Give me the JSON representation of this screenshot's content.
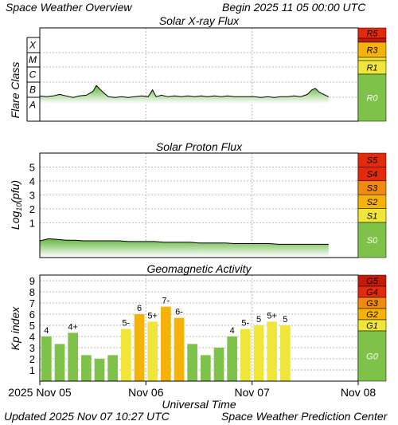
{
  "header": {
    "title": "Space Weather Overview",
    "begin": "Begin 2025 11 05 00:00 UTC"
  },
  "footer": {
    "updated": "Updated 2025 Nov 07 10:27 UTC",
    "center": "Space Weather Prediction Center"
  },
  "x_axis": {
    "label": "Universal Time",
    "ticks": [
      "2025 Nov 05",
      "Nov 06",
      "Nov 07",
      "Nov 08"
    ]
  },
  "colors": {
    "plot_bg": "#ffffff",
    "grid": "#bbbbbb",
    "green_bar": "#7fc24a",
    "yellow": "#f0e63a",
    "orange": "#f5b30a",
    "scale_green": "#7fc24a",
    "scale_yellow": "#f0e63a",
    "scale_amber": "#f5b30a",
    "scale_orange": "#f08a10",
    "scale_red": "#e32a0c",
    "scale_darkred": "#c41a0a"
  },
  "chart_data": [
    {
      "type": "line",
      "title": "Solar X-ray Flux",
      "ylabel": "Flare Class",
      "y_ticks": [
        "X",
        "M",
        "C",
        "B",
        "A"
      ],
      "scale": [
        "R5",
        "R3",
        "R1",
        "R0"
      ],
      "x_unit": "hours since 2025-11-05 00:00 UTC",
      "xlim": [
        0,
        72
      ],
      "series": [
        {
          "points": [
            [
              0,
              5.0
            ],
            [
              1.5,
              4.95
            ],
            [
              3,
              5.0
            ],
            [
              4.5,
              5.1
            ],
            [
              6,
              5.0
            ],
            [
              7.5,
              4.9
            ],
            [
              9,
              5.0
            ],
            [
              10.5,
              5.05
            ],
            [
              12,
              5.3
            ],
            [
              12.8,
              5.7
            ],
            [
              13.6,
              5.45
            ],
            [
              14.5,
              5.2
            ],
            [
              15.5,
              4.95
            ],
            [
              17,
              4.9
            ],
            [
              18.5,
              4.95
            ],
            [
              20,
              4.9
            ],
            [
              21.5,
              4.95
            ],
            [
              23,
              5.0
            ],
            [
              24.5,
              4.95
            ],
            [
              25.5,
              5.4
            ],
            [
              26.3,
              4.95
            ],
            [
              27.5,
              5.05
            ],
            [
              29,
              4.95
            ],
            [
              30.5,
              5.0
            ],
            [
              32,
              4.95
            ],
            [
              33.5,
              5.0
            ],
            [
              35,
              4.95
            ],
            [
              36.5,
              5.0
            ],
            [
              38,
              4.95
            ],
            [
              39.5,
              5.0
            ],
            [
              41,
              4.95
            ],
            [
              42.5,
              5.0
            ],
            [
              44,
              4.95
            ],
            [
              45.5,
              4.95
            ],
            [
              47,
              4.95
            ],
            [
              48.5,
              4.95
            ],
            [
              50,
              4.9
            ],
            [
              51.5,
              4.95
            ],
            [
              53,
              4.9
            ],
            [
              54.5,
              4.95
            ],
            [
              56,
              4.95
            ],
            [
              57.5,
              5.0
            ],
            [
              59,
              4.95
            ],
            [
              60.5,
              5.1
            ],
            [
              61.5,
              5.4
            ],
            [
              62.3,
              5.5
            ],
            [
              63.2,
              5.25
            ],
            [
              64.2,
              5.1
            ],
            [
              65.3,
              4.95
            ]
          ]
        }
      ]
    },
    {
      "type": "line",
      "title": "Solar Proton Flux",
      "ylabel": "Log10(pfu)",
      "ylim": [
        -1.5,
        6
      ],
      "y_ticks": [
        1,
        2,
        3,
        4,
        5
      ],
      "scale": [
        "S5",
        "S4",
        "S3",
        "S2",
        "S1",
        "S0"
      ],
      "x_unit": "hours since 2025-11-05 00:00 UTC",
      "xlim": [
        0,
        72
      ],
      "series": [
        {
          "points": [
            [
              0,
              -0.3
            ],
            [
              2,
              -0.15
            ],
            [
              4,
              -0.2
            ],
            [
              6,
              -0.25
            ],
            [
              8,
              -0.25
            ],
            [
              10,
              -0.3
            ],
            [
              12,
              -0.3
            ],
            [
              14,
              -0.3
            ],
            [
              16,
              -0.3
            ],
            [
              18,
              -0.3
            ],
            [
              20,
              -0.35
            ],
            [
              22,
              -0.35
            ],
            [
              24,
              -0.35
            ],
            [
              26,
              -0.35
            ],
            [
              28,
              -0.4
            ],
            [
              30,
              -0.4
            ],
            [
              32,
              -0.4
            ],
            [
              34,
              -0.4
            ],
            [
              36,
              -0.45
            ],
            [
              38,
              -0.45
            ],
            [
              40,
              -0.45
            ],
            [
              42,
              -0.45
            ],
            [
              44,
              -0.5
            ],
            [
              46,
              -0.5
            ],
            [
              48,
              -0.5
            ],
            [
              50,
              -0.5
            ],
            [
              52,
              -0.5
            ],
            [
              54,
              -0.55
            ],
            [
              56,
              -0.55
            ],
            [
              58,
              -0.55
            ],
            [
              60,
              -0.55
            ],
            [
              62,
              -0.55
            ],
            [
              64,
              -0.55
            ],
            [
              65.3,
              -0.55
            ]
          ]
        }
      ]
    },
    {
      "type": "bar",
      "title": "Geomagnetic Activity",
      "ylabel": "Kp index",
      "ylim": [
        0,
        9.5
      ],
      "y_ticks": [
        1,
        2,
        3,
        4,
        5,
        6,
        7,
        8,
        9
      ],
      "scale": [
        "G5",
        "G4",
        "G3",
        "G2",
        "G1",
        "G0"
      ],
      "x_unit": "3-hour intervals from 2025-11-05 00:00 UTC",
      "values": [
        4.0,
        3.33,
        4.33,
        2.33,
        2.0,
        2.33,
        4.67,
        6.0,
        5.33,
        6.67,
        5.67,
        3.33,
        2.33,
        3.0,
        4.0,
        4.67,
        5.0,
        5.33,
        5.0
      ],
      "labels": [
        "4",
        "",
        "4+",
        "",
        "",
        "",
        "5-",
        "6",
        "5+",
        "7-",
        "6-",
        "",
        "",
        "",
        "4",
        "5-",
        "5",
        "5+",
        "5"
      ]
    }
  ]
}
